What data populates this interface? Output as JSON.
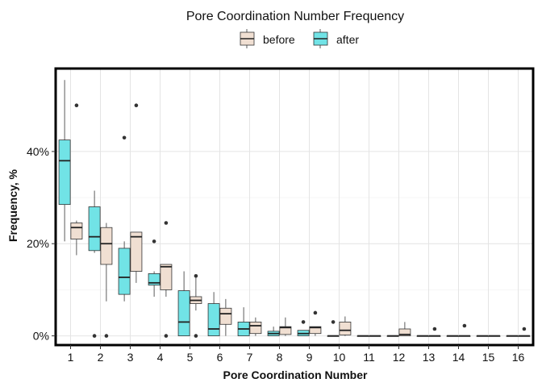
{
  "chart_data": {
    "type": "boxplot",
    "title": "Pore Coordination Number Frequency",
    "xlabel": "Pore Coordination Number",
    "ylabel": "Frequency, %",
    "categories": [
      "1",
      "2",
      "3",
      "4",
      "5",
      "6",
      "7",
      "8",
      "9",
      "10",
      "11",
      "12",
      "13",
      "14",
      "15",
      "16"
    ],
    "y_ticks": [
      {
        "value": 0,
        "label": "0%"
      },
      {
        "value": 20,
        "label": "20%"
      },
      {
        "value": 40,
        "label": "40%"
      }
    ],
    "ylim": [
      -2,
      58
    ],
    "legend_placement": "top",
    "grid": true,
    "series": [
      {
        "name": "before",
        "color": "#f0dfd2",
        "boxes": [
          {
            "category": "1",
            "lower": 17.5,
            "q1": 21,
            "median": 23.5,
            "q3": 24.5,
            "upper": 25,
            "outliers": [
              50
            ]
          },
          {
            "category": "2",
            "lower": 7.5,
            "q1": 15.5,
            "median": 20,
            "q3": 23.5,
            "upper": 24.5,
            "outliers": [
              0
            ]
          },
          {
            "category": "3",
            "lower": 11.5,
            "q1": 14,
            "median": 21.5,
            "q3": 22.5,
            "upper": 22.5,
            "outliers": [
              50
            ]
          },
          {
            "category": "4",
            "lower": 8.5,
            "q1": 10,
            "median": 15,
            "q3": 15.5,
            "upper": 15.5,
            "outliers": [
              0,
              24.5
            ]
          },
          {
            "category": "5",
            "lower": 5.5,
            "q1": 7,
            "median": 7.7,
            "q3": 8.5,
            "upper": 13,
            "outliers": [
              0,
              13
            ]
          },
          {
            "category": "6",
            "lower": 0,
            "q1": 2.5,
            "median": 4.8,
            "q3": 6,
            "upper": 8,
            "outliers": []
          },
          {
            "category": "7",
            "lower": 0,
            "q1": 0.5,
            "median": 2.2,
            "q3": 3,
            "upper": 4,
            "outliers": []
          },
          {
            "category": "8",
            "lower": 0,
            "q1": 0.3,
            "median": 1.8,
            "q3": 2,
            "upper": 4,
            "outliers": []
          },
          {
            "category": "9",
            "lower": 0,
            "q1": 0.5,
            "median": 1.8,
            "q3": 2,
            "upper": 2,
            "outliers": [
              5
            ]
          },
          {
            "category": "10",
            "lower": 0,
            "q1": 0.2,
            "median": 1.2,
            "q3": 3,
            "upper": 4.2,
            "outliers": []
          },
          {
            "category": "11",
            "lower": 0,
            "q1": 0,
            "median": 0,
            "q3": 0,
            "upper": 0,
            "outliers": []
          },
          {
            "category": "12",
            "lower": 0,
            "q1": 0,
            "median": 0.3,
            "q3": 1.5,
            "upper": 3,
            "outliers": []
          },
          {
            "category": "13",
            "lower": 0,
            "q1": 0,
            "median": 0,
            "q3": 0,
            "upper": 0,
            "outliers": [
              1.5
            ]
          },
          {
            "category": "14",
            "lower": 0,
            "q1": 0,
            "median": 0,
            "q3": 0,
            "upper": 0,
            "outliers": [
              2.2
            ]
          },
          {
            "category": "15",
            "lower": 0,
            "q1": 0,
            "median": 0,
            "q3": 0,
            "upper": 0,
            "outliers": []
          },
          {
            "category": "16",
            "lower": 0,
            "q1": 0,
            "median": 0,
            "q3": 0,
            "upper": 0,
            "outliers": [
              1.5
            ]
          }
        ]
      },
      {
        "name": "after",
        "color": "#71e3e6",
        "boxes": [
          {
            "category": "1",
            "lower": 20.5,
            "q1": 28.5,
            "median": 38,
            "q3": 42.5,
            "upper": 55.5,
            "outliers": []
          },
          {
            "category": "2",
            "lower": 18,
            "q1": 18.5,
            "median": 21.5,
            "q3": 28,
            "upper": 31.5,
            "outliers": [
              0
            ]
          },
          {
            "category": "3",
            "lower": 7.5,
            "q1": 9,
            "median": 12.7,
            "q3": 19,
            "upper": 20.5,
            "outliers": [
              43
            ]
          },
          {
            "category": "4",
            "lower": 8.5,
            "q1": 11,
            "median": 11.5,
            "q3": 13.5,
            "upper": 14,
            "outliers": [
              20.5
            ]
          },
          {
            "category": "5",
            "lower": 0,
            "q1": 0,
            "median": 3,
            "q3": 9.8,
            "upper": 14,
            "outliers": []
          },
          {
            "category": "6",
            "lower": 0,
            "q1": 0,
            "median": 1.5,
            "q3": 7,
            "upper": 9.5,
            "outliers": []
          },
          {
            "category": "7",
            "lower": 0,
            "q1": 0,
            "median": 1.5,
            "q3": 3,
            "upper": 6.2,
            "outliers": []
          },
          {
            "category": "8",
            "lower": 0,
            "q1": 0,
            "median": 0.5,
            "q3": 1,
            "upper": 2,
            "outliers": []
          },
          {
            "category": "9",
            "lower": 0,
            "q1": 0,
            "median": 0.5,
            "q3": 1.2,
            "upper": 1.2,
            "outliers": [
              3
            ]
          },
          {
            "category": "10",
            "lower": 0,
            "q1": 0,
            "median": 0,
            "q3": 0,
            "upper": 0,
            "outliers": [
              3
            ]
          },
          {
            "category": "11",
            "lower": 0,
            "q1": 0,
            "median": 0,
            "q3": 0,
            "upper": 0,
            "outliers": []
          },
          {
            "category": "12",
            "lower": 0,
            "q1": 0,
            "median": 0,
            "q3": 0,
            "upper": 0,
            "outliers": []
          },
          {
            "category": "13",
            "lower": 0,
            "q1": 0,
            "median": 0,
            "q3": 0,
            "upper": 0,
            "outliers": []
          },
          {
            "category": "14",
            "lower": 0,
            "q1": 0,
            "median": 0,
            "q3": 0,
            "upper": 0,
            "outliers": []
          },
          {
            "category": "15",
            "lower": 0,
            "q1": 0,
            "median": 0,
            "q3": 0,
            "upper": 0,
            "outliers": []
          },
          {
            "category": "16",
            "lower": 0,
            "q1": 0,
            "median": 0,
            "q3": 0,
            "upper": 0,
            "outliers": []
          }
        ]
      }
    ]
  }
}
